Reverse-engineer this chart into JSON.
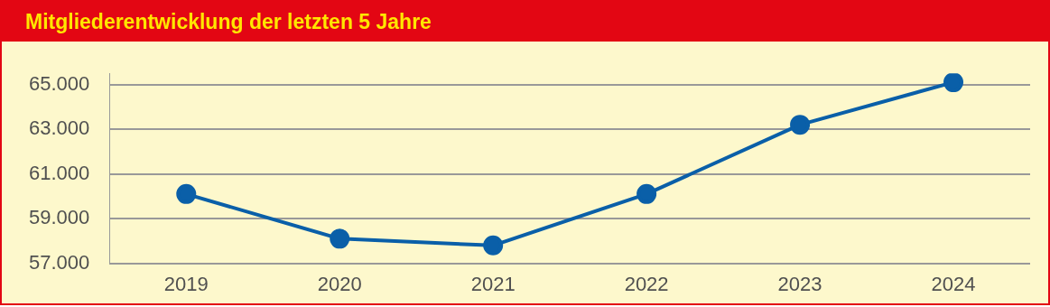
{
  "chart_data": {
    "type": "line",
    "title": "Mitgliederentwicklung der letzten 5 Jahre",
    "categories": [
      "2019",
      "2020",
      "2021",
      "2022",
      "2023",
      "2024"
    ],
    "series": [
      {
        "color": "#0a5fa8",
        "values": [
          60100,
          58100,
          57800,
          60100,
          63200,
          65100
        ]
      }
    ],
    "ylim": [
      57000,
      65500
    ],
    "yticks": [
      {
        "value": 57000,
        "label": "57.000"
      },
      {
        "value": 59000,
        "label": "59.000"
      },
      {
        "value": 61000,
        "label": "61.000"
      },
      {
        "value": 63000,
        "label": "63.000"
      },
      {
        "value": 65000,
        "label": "65.000"
      }
    ],
    "grid": "y",
    "marker": "circle",
    "line_style": "solid",
    "legend": false
  }
}
